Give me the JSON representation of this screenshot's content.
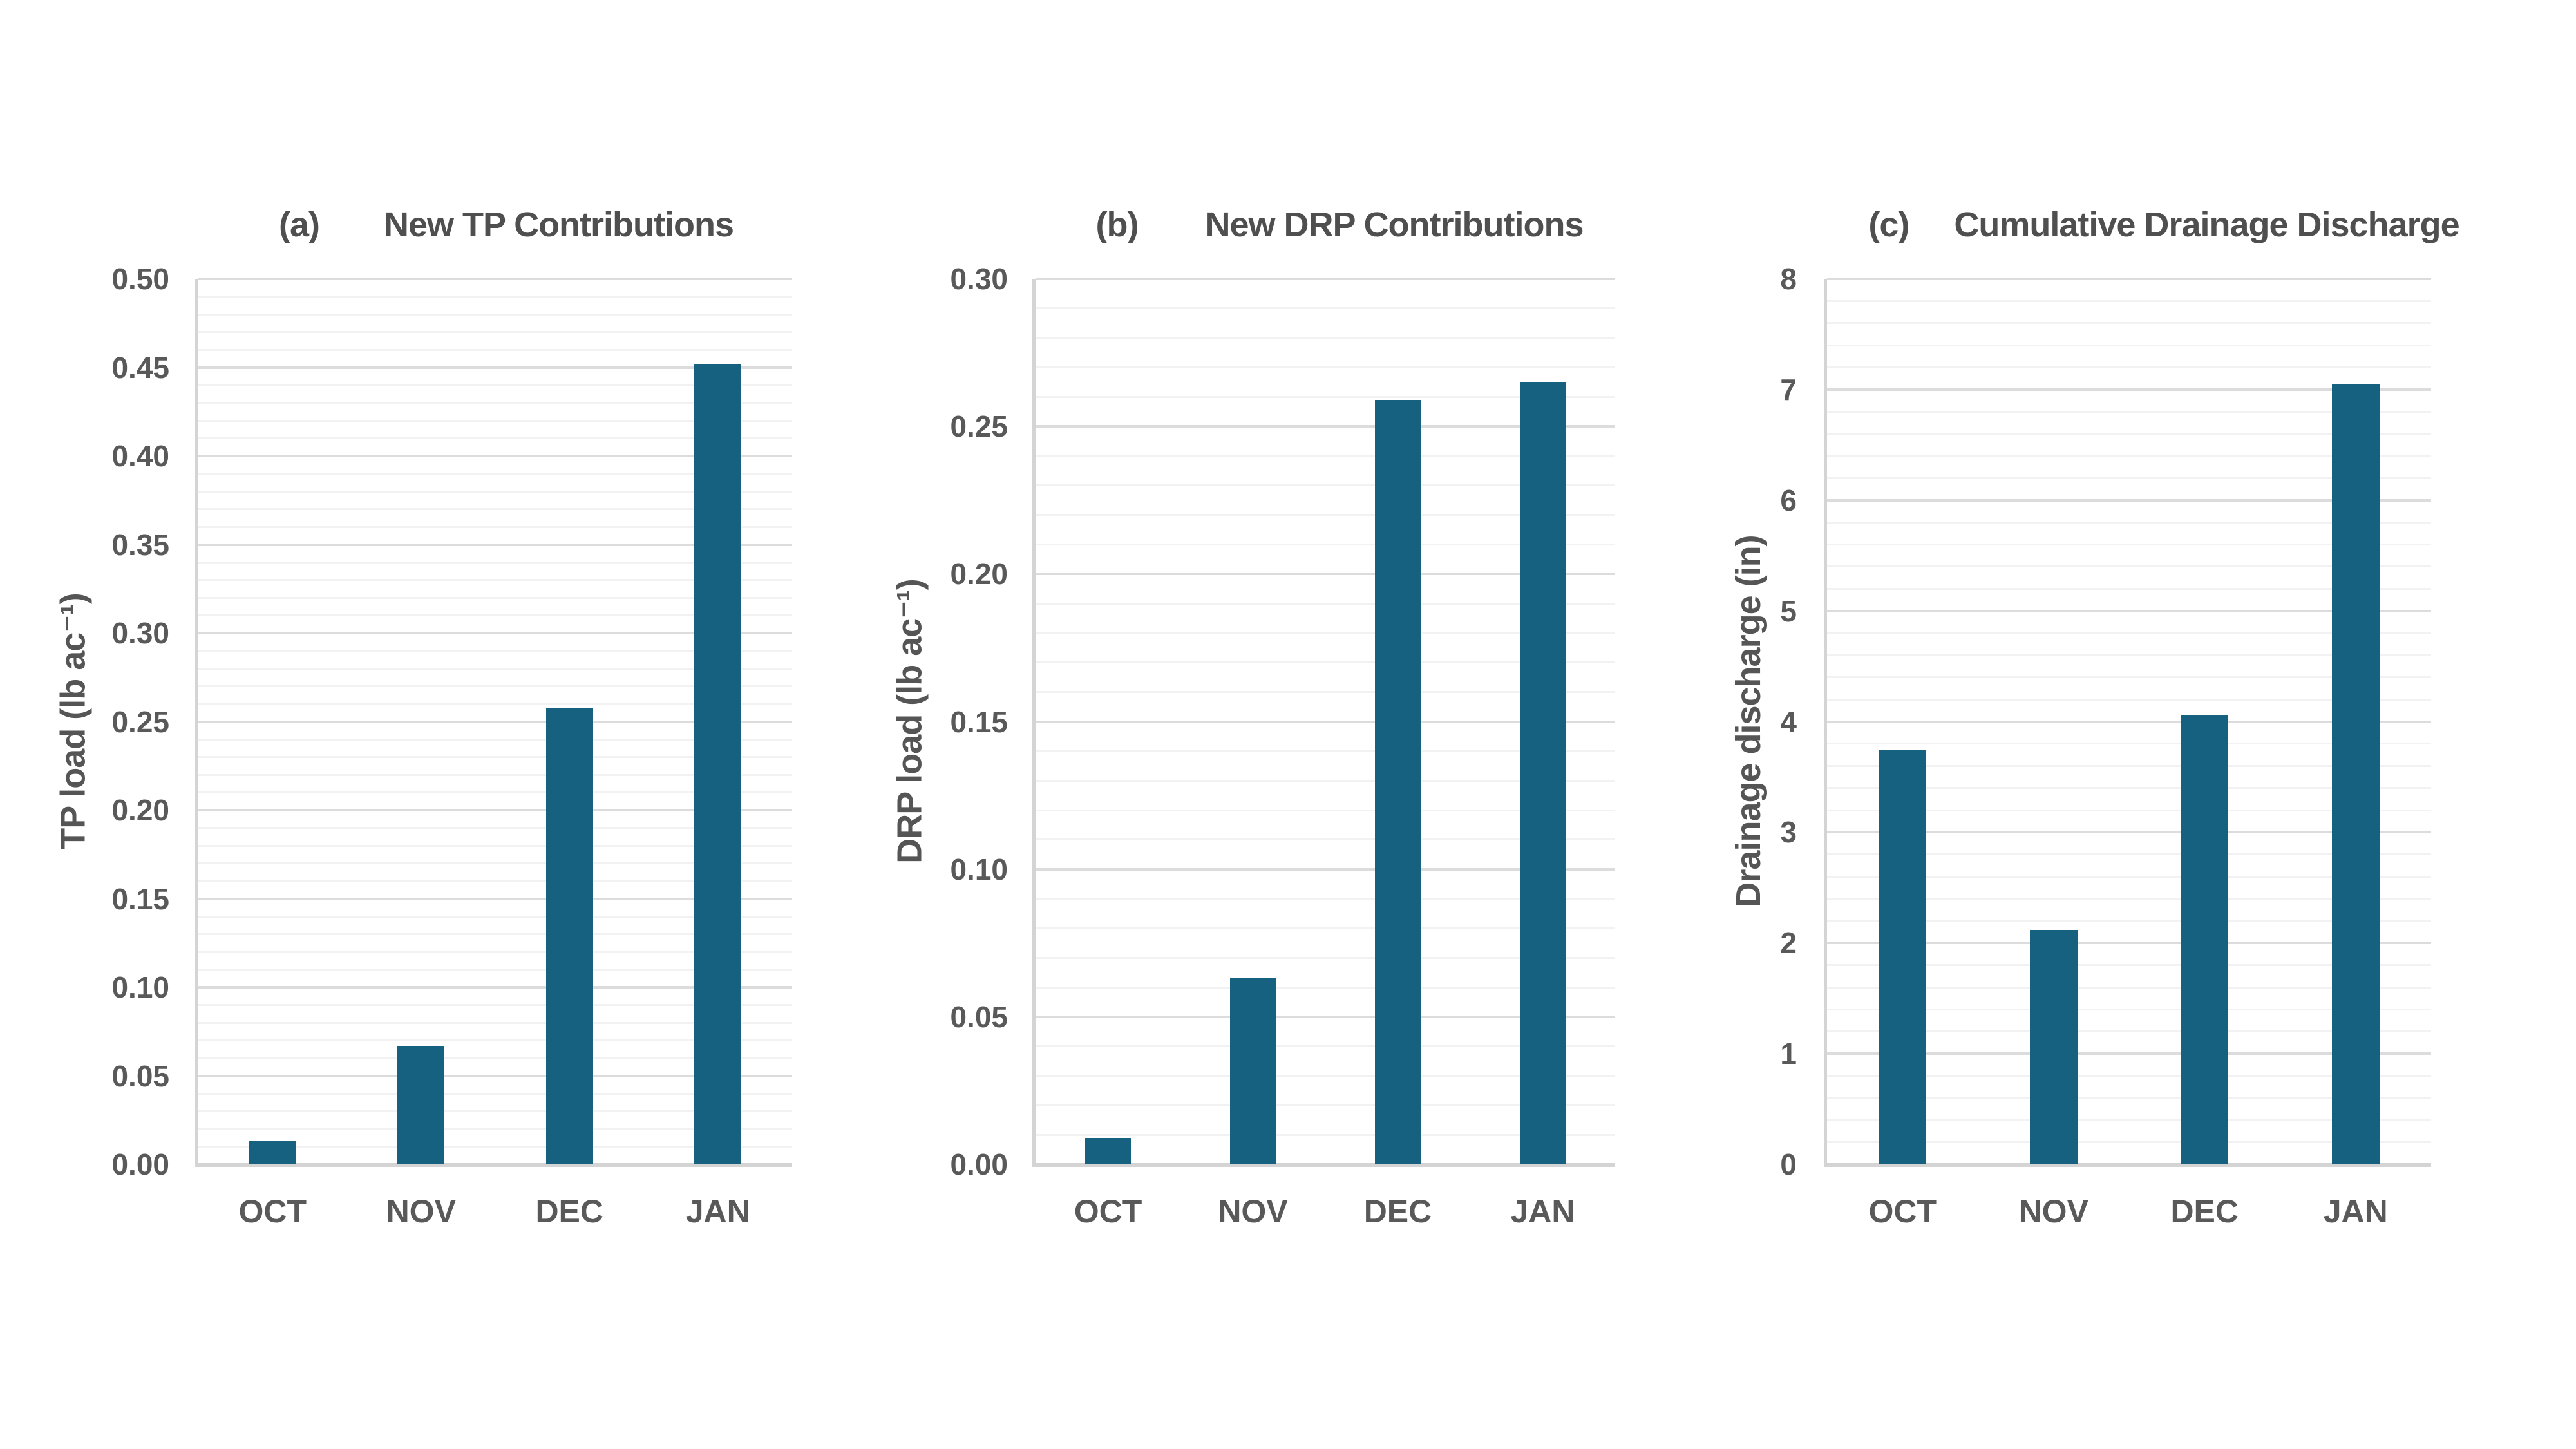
{
  "figure": {
    "background": "#ffffff"
  },
  "colors": {
    "bar": "#176180",
    "tick_text": "#595959",
    "title_text": "#4f4f4f",
    "grid_minor": "#f2f2f2",
    "grid_major": "#dcdcdc",
    "axis_line": "#d4d4d4"
  },
  "chart_data": [
    {
      "type": "bar",
      "panel_label": "(a)",
      "title": "New TP Contributions",
      "ylabel": "TP load (lb ac⁻¹)",
      "categories": [
        "OCT",
        "NOV",
        "DEC",
        "JAN"
      ],
      "values": [
        0.013,
        0.067,
        0.258,
        0.452
      ],
      "ylim": [
        0,
        0.5
      ],
      "ytick_step": 0.05,
      "minor_step": 0.01,
      "tick_decimals": 2,
      "grid": "on",
      "legend": "none"
    },
    {
      "type": "bar",
      "panel_label": "(b)",
      "title": "New DRP Contributions",
      "ylabel": "DRP load (lb ac⁻¹)",
      "categories": [
        "OCT",
        "NOV",
        "DEC",
        "JAN"
      ],
      "values": [
        0.009,
        0.063,
        0.259,
        0.265
      ],
      "ylim": [
        0,
        0.3
      ],
      "ytick_step": 0.05,
      "minor_step": 0.01,
      "tick_decimals": 2,
      "grid": "on",
      "legend": "none"
    },
    {
      "type": "bar",
      "panel_label": "(c)",
      "title": "Cumulative Drainage Discharge",
      "ylabel": "Drainage discharge (in)",
      "categories": [
        "OCT",
        "NOV",
        "DEC",
        "JAN"
      ],
      "values": [
        3.74,
        2.12,
        4.06,
        7.05
      ],
      "ylim": [
        0,
        8
      ],
      "ytick_step": 1,
      "minor_step": 0.2,
      "tick_decimals": 0,
      "grid": "on",
      "legend": "none"
    }
  ]
}
